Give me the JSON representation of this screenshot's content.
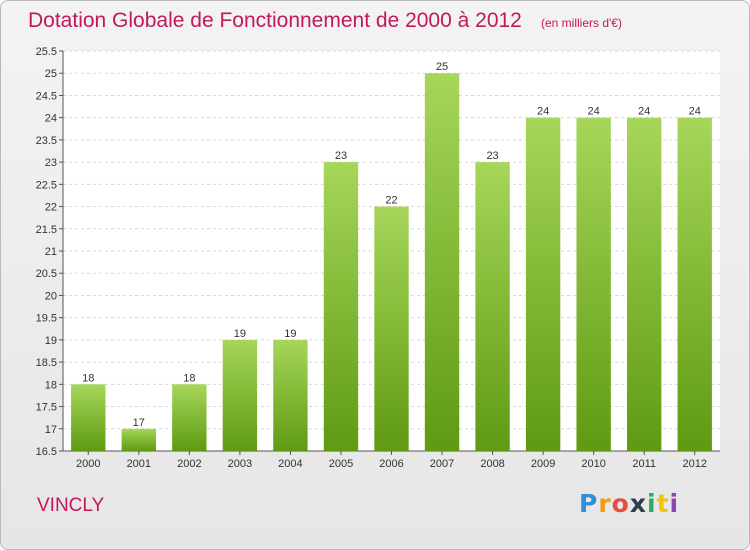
{
  "header": {
    "title": "Dotation Globale de Fonctionnement de 2000 à 2012",
    "subtitle": "(en milliers d'€)"
  },
  "footer": {
    "commune": "VINCLY",
    "logo_letters": [
      "P",
      "r",
      "o",
      "x",
      "i",
      "t",
      "i"
    ]
  },
  "colors": {
    "title": "#c2185b",
    "bar_top": "#a6d65a",
    "bar_bottom": "#5f9a12",
    "grid": "#d8d8d8"
  },
  "chart_data": {
    "type": "bar",
    "title": "Dotation Globale de Fonctionnement de 2000 à 2012",
    "subtitle": "(en milliers d'€)",
    "categories": [
      "2000",
      "2001",
      "2002",
      "2003",
      "2004",
      "2005",
      "2006",
      "2007",
      "2008",
      "2009",
      "2010",
      "2011",
      "2012"
    ],
    "values": [
      18,
      17,
      18,
      19,
      19,
      23,
      22,
      25,
      23,
      24,
      24,
      24,
      24
    ],
    "data_labels": [
      "18",
      "17",
      "18",
      "19",
      "19",
      "23",
      "22",
      "25",
      "23",
      "24",
      "24",
      "24",
      "24"
    ],
    "ylim": [
      16.5,
      25.5
    ],
    "yticks": [
      "16.5",
      "17",
      "17.5",
      "18",
      "18.5",
      "19",
      "19.5",
      "20",
      "20.5",
      "21",
      "21.5",
      "22",
      "22.5",
      "23",
      "23.5",
      "24",
      "24.5",
      "25",
      "25.5"
    ],
    "xlabel": "",
    "ylabel": "",
    "grid": true,
    "legend": "none"
  }
}
